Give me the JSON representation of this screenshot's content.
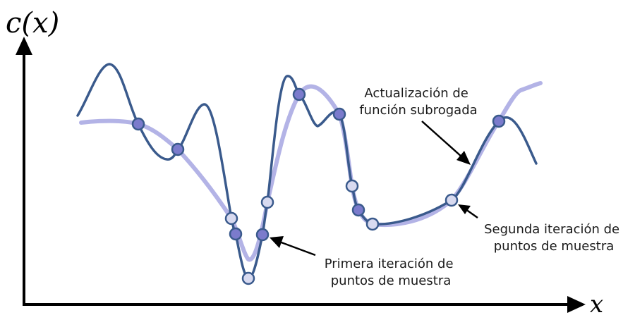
{
  "labels": {
    "y_axis": "c(x)",
    "x_axis": "x",
    "surrogate_update": [
      "Actualización de",
      "función subrogada"
    ],
    "first_iteration": [
      "Primera iteración de",
      "puntos de muestra"
    ],
    "second_iteration": [
      "Segunda iteración de",
      "puntos de muestra"
    ]
  },
  "colors": {
    "axis": "#000000",
    "true_function": "#3a5a8c",
    "surrogate": "#b3b3e6",
    "first_points": "#7b7bcc",
    "second_points": "#d8daf0",
    "point_stroke": "#3a5a8c",
    "arrow": "#000000"
  },
  "icons": {
    "axis_arrowheads": "triangle-arrow",
    "annotation_arrows": "triangle-arrow"
  }
}
